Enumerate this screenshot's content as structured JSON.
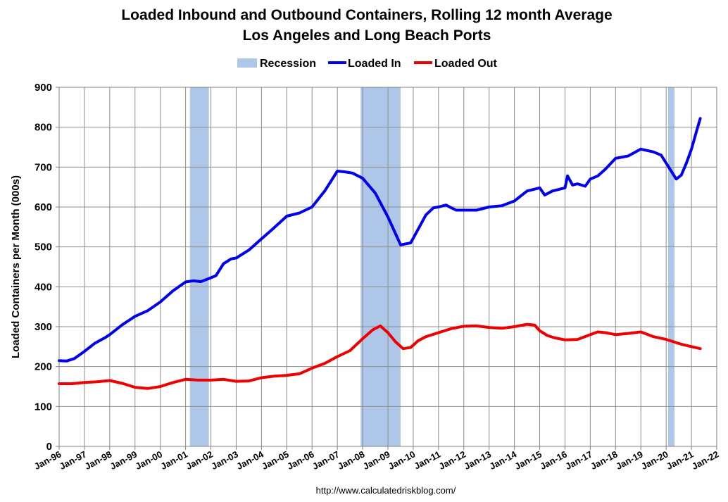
{
  "chart_data": {
    "type": "line",
    "title": "Loaded Inbound and Outbound Containers, Rolling 12 month Average",
    "subtitle": "Los Angeles and Long Beach Ports",
    "xlabel": "",
    "ylabel": "Loaded Containers per Month (000s)",
    "ylim": [
      0,
      900
    ],
    "yticks": [
      "0",
      "100",
      "200",
      "300",
      "400",
      "500",
      "600",
      "700",
      "800",
      "900"
    ],
    "xlim": [
      1996,
      2022
    ],
    "xticks": [
      "Jan-96",
      "Jan-97",
      "Jan-98",
      "Jan-99",
      "Jan-00",
      "Jan-01",
      "Jan-02",
      "Jan-03",
      "Jan-04",
      "Jan-05",
      "Jan-06",
      "Jan-07",
      "Jan-08",
      "Jan-09",
      "Jan-10",
      "Jan-11",
      "Jan-12",
      "Jan-13",
      "Jan-14",
      "Jan-15",
      "Jan-16",
      "Jan-17",
      "Jan-18",
      "Jan-19",
      "Jan-20",
      "Jan-21",
      "Jan-22"
    ],
    "grid": true,
    "legend": [
      {
        "label": "Recession",
        "color": "#aec7e8",
        "kind": "band"
      },
      {
        "label": "Loaded In",
        "color": "#0000ee",
        "kind": "line"
      },
      {
        "label": "Loaded Out",
        "color": "#ee0000",
        "kind": "line"
      }
    ],
    "recessions": [
      {
        "start": 2001.17,
        "end": 2001.92
      },
      {
        "start": 2007.92,
        "end": 2009.5
      },
      {
        "start": 2020.08,
        "end": 2020.33
      }
    ],
    "series": [
      {
        "name": "Loaded In",
        "color": "#0000ee",
        "x": [
          1996.0,
          1996.3,
          1996.6,
          1997.0,
          1997.4,
          1997.8,
          1998.0,
          1998.5,
          1999.0,
          1999.5,
          2000.0,
          2000.5,
          2001.0,
          2001.3,
          2001.6,
          2001.9,
          2002.2,
          2002.5,
          2002.8,
          2003.0,
          2003.5,
          2004.0,
          2004.5,
          2005.0,
          2005.5,
          2006.0,
          2006.5,
          2007.0,
          2007.3,
          2007.6,
          2008.0,
          2008.5,
          2009.0,
          2009.5,
          2009.9,
          2010.2,
          2010.5,
          2010.8,
          2011.0,
          2011.3,
          2011.5,
          2011.7,
          2012.0,
          2012.5,
          2013.0,
          2013.5,
          2014.0,
          2014.5,
          2015.0,
          2015.2,
          2015.5,
          2016.0,
          2016.1,
          2016.3,
          2016.5,
          2016.8,
          2017.0,
          2017.3,
          2017.6,
          2018.0,
          2018.5,
          2019.0,
          2019.5,
          2019.8,
          2020.0,
          2020.2,
          2020.4,
          2020.6,
          2020.8,
          2021.0,
          2021.2,
          2021.35
        ],
        "values": [
          215,
          214,
          220,
          238,
          258,
          272,
          280,
          305,
          326,
          340,
          362,
          390,
          412,
          415,
          413,
          420,
          428,
          458,
          470,
          472,
          492,
          520,
          548,
          577,
          585,
          600,
          640,
          690,
          688,
          685,
          672,
          635,
          575,
          505,
          510,
          545,
          580,
          598,
          600,
          605,
          598,
          592,
          592,
          592,
          600,
          603,
          615,
          640,
          648,
          630,
          640,
          648,
          678,
          655,
          658,
          652,
          670,
          678,
          695,
          722,
          728,
          745,
          738,
          730,
          710,
          690,
          670,
          680,
          710,
          745,
          790,
          822
        ]
      },
      {
        "name": "Loaded Out",
        "color": "#ee0000",
        "x": [
          1996.0,
          1996.5,
          1997.0,
          1997.5,
          1998.0,
          1998.5,
          1999.0,
          1999.5,
          2000.0,
          2000.5,
          2001.0,
          2001.5,
          2002.0,
          2002.5,
          2003.0,
          2003.5,
          2004.0,
          2004.5,
          2005.0,
          2005.5,
          2006.0,
          2006.5,
          2007.0,
          2007.5,
          2008.0,
          2008.4,
          2008.7,
          2009.0,
          2009.3,
          2009.6,
          2009.9,
          2010.2,
          2010.5,
          2011.0,
          2011.5,
          2012.0,
          2012.5,
          2013.0,
          2013.5,
          2014.0,
          2014.5,
          2014.8,
          2015.0,
          2015.3,
          2015.6,
          2016.0,
          2016.5,
          2017.0,
          2017.3,
          2017.6,
          2018.0,
          2018.5,
          2019.0,
          2019.5,
          2020.0,
          2020.3,
          2020.6,
          2021.0,
          2021.35
        ],
        "values": [
          157,
          157,
          160,
          162,
          165,
          158,
          148,
          145,
          150,
          160,
          168,
          166,
          166,
          168,
          163,
          164,
          172,
          176,
          178,
          182,
          196,
          208,
          225,
          240,
          270,
          292,
          302,
          285,
          262,
          245,
          248,
          265,
          275,
          285,
          295,
          301,
          302,
          298,
          296,
          300,
          306,
          304,
          290,
          278,
          272,
          267,
          268,
          280,
          287,
          285,
          280,
          283,
          287,
          275,
          268,
          262,
          256,
          250,
          245
        ]
      }
    ]
  },
  "source_url": "http://www.calculatedriskblog.com/"
}
